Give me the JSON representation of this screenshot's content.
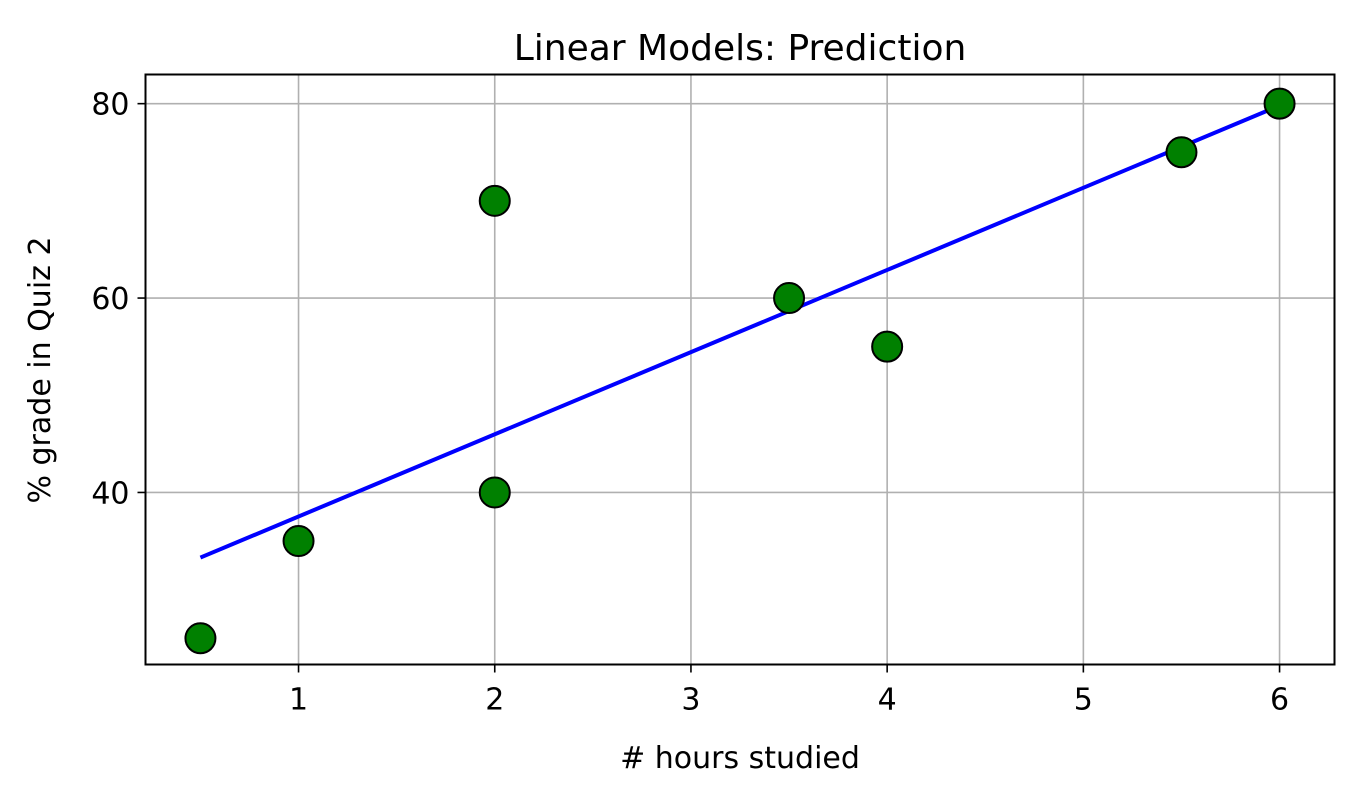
{
  "chart_data": {
    "type": "scatter",
    "title": "Linear Models: Prediction",
    "xlabel": "# hours studied",
    "ylabel": "% grade in Quiz 2",
    "xlim": [
      0.22,
      6.28
    ],
    "ylim": [
      22.3,
      83.0
    ],
    "xticks": [
      1,
      2,
      3,
      4,
      5,
      6
    ],
    "yticks": [
      40,
      60,
      80
    ],
    "xtick_labels": [
      "1",
      "2",
      "3",
      "4",
      "5",
      "6"
    ],
    "ytick_labels": [
      "40",
      "60",
      "80"
    ],
    "grid": true,
    "points": {
      "x": [
        0.5,
        1,
        2,
        2,
        3.5,
        4,
        5.5,
        6
      ],
      "y": [
        25,
        35,
        40,
        70,
        60,
        55,
        75,
        80
      ],
      "color": "#008000",
      "edge_color": "#000000"
    },
    "fit_line": {
      "x": [
        0.5,
        6
      ],
      "y": [
        33.3,
        79.8
      ],
      "color": "#0000ff"
    }
  }
}
